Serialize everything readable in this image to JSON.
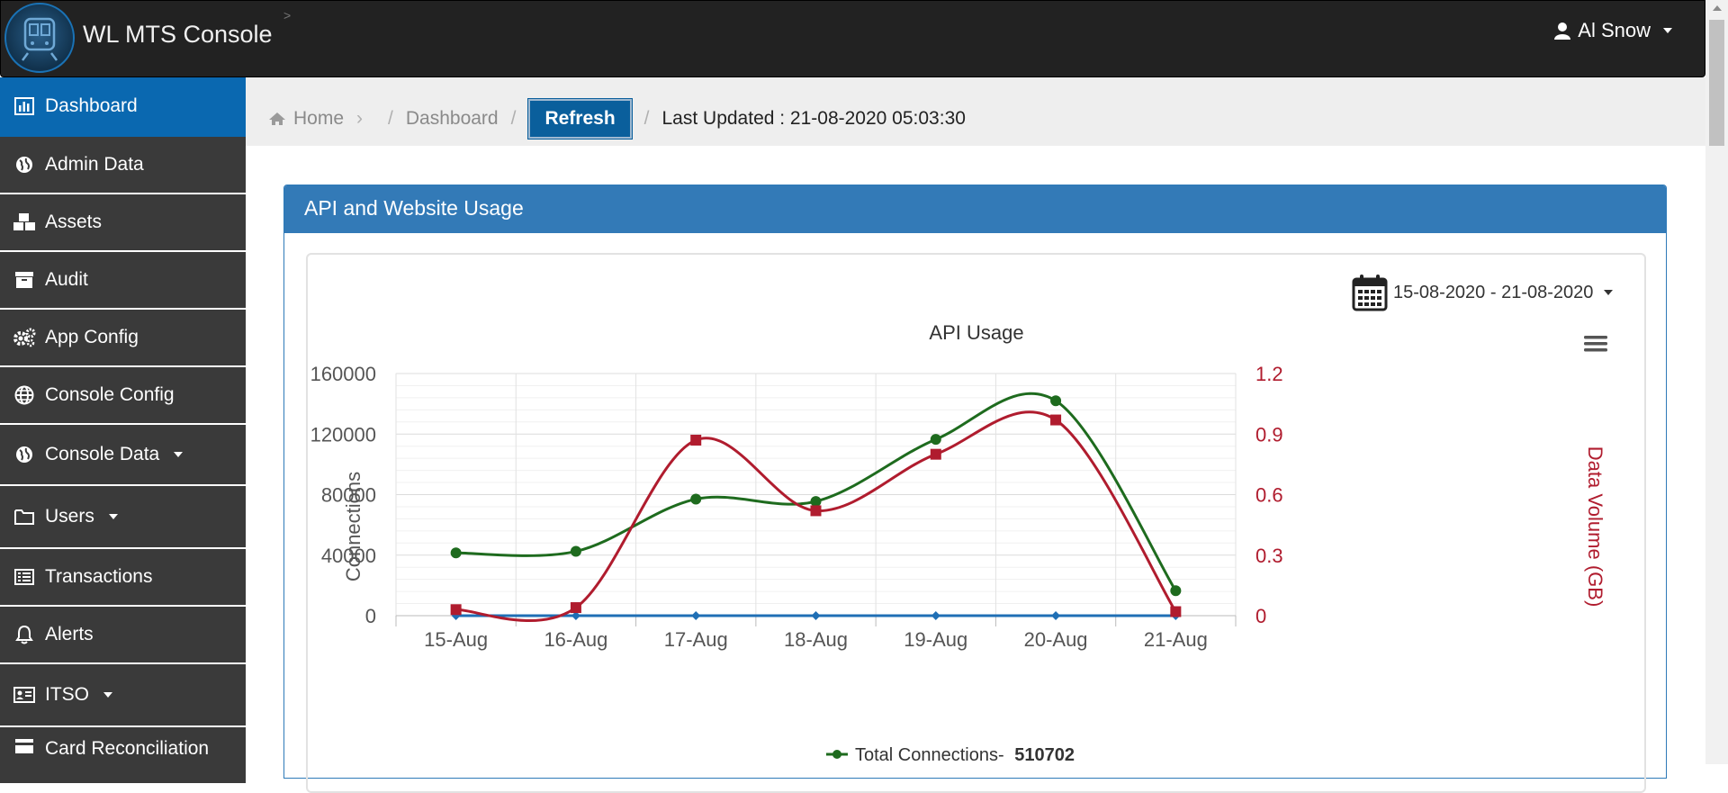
{
  "app": {
    "title": "WL MTS Console",
    "user": "Al Snow"
  },
  "sidebar": {
    "items": [
      {
        "label": "Dashboard",
        "icon": "bar-chart-icon",
        "active": true
      },
      {
        "label": "Admin Data",
        "icon": "globe-icon"
      },
      {
        "label": "Assets",
        "icon": "cubes-icon"
      },
      {
        "label": "Audit",
        "icon": "archive-icon"
      },
      {
        "label": "App Config",
        "icon": "gears-icon"
      },
      {
        "label": "Console Config",
        "icon": "globe-grid-icon"
      },
      {
        "label": "Console Data",
        "icon": "globe-icon",
        "dropdown": true
      },
      {
        "label": "Users",
        "icon": "folder-icon",
        "dropdown": true
      },
      {
        "label": "Transactions",
        "icon": "list-icon"
      },
      {
        "label": "Alerts",
        "icon": "bell-icon"
      },
      {
        "label": "ITSO",
        "icon": "id-card-icon",
        "dropdown": true
      },
      {
        "label": "Card Reconciliation",
        "icon": "card-icon"
      }
    ]
  },
  "breadcrumb": {
    "home": "Home",
    "dashboard": "Dashboard",
    "refresh": "Refresh",
    "last_updated": "Last Updated : 21-08-2020 05:03:30"
  },
  "panel": {
    "title": "API and Website Usage",
    "date_range": "15-08-2020 - 21-08-2020"
  },
  "chart_data": {
    "type": "line",
    "title": "API Usage",
    "categories": [
      "15-Aug",
      "16-Aug",
      "17-Aug",
      "18-Aug",
      "19-Aug",
      "20-Aug",
      "21-Aug"
    ],
    "y_left": {
      "label": "Connections",
      "ticks": [
        0,
        40000,
        80000,
        120000,
        160000
      ],
      "range": [
        0,
        160000
      ]
    },
    "y_right": {
      "label": "Data Volume (GB)",
      "ticks": [
        0,
        0.3,
        0.6,
        0.9,
        1.2
      ],
      "range": [
        0,
        1.2
      ]
    },
    "series": [
      {
        "name": "Total Connections",
        "color": "#1e6b1e",
        "axis": "left",
        "marker": "circle",
        "values": [
          41500,
          42500,
          77000,
          75500,
          116500,
          142000,
          16500
        ]
      },
      {
        "name": "",
        "color": "#b01c2e",
        "axis": "right",
        "marker": "square",
        "values": [
          0.03,
          0.04,
          0.87,
          0.52,
          0.8,
          0.97,
          0.02
        ]
      },
      {
        "name": "",
        "color": "#1f6fb5",
        "axis": "left",
        "marker": "diamond",
        "values": [
          0,
          0,
          0,
          0,
          0,
          0,
          0
        ]
      }
    ],
    "legend": {
      "label": "Total Connections- ",
      "value": "510702",
      "placement": "bottom-center"
    },
    "grid": true
  },
  "colors": {
    "topbar": "#222222",
    "accent": "#337ab7",
    "active_nav": "#0a68b0"
  }
}
